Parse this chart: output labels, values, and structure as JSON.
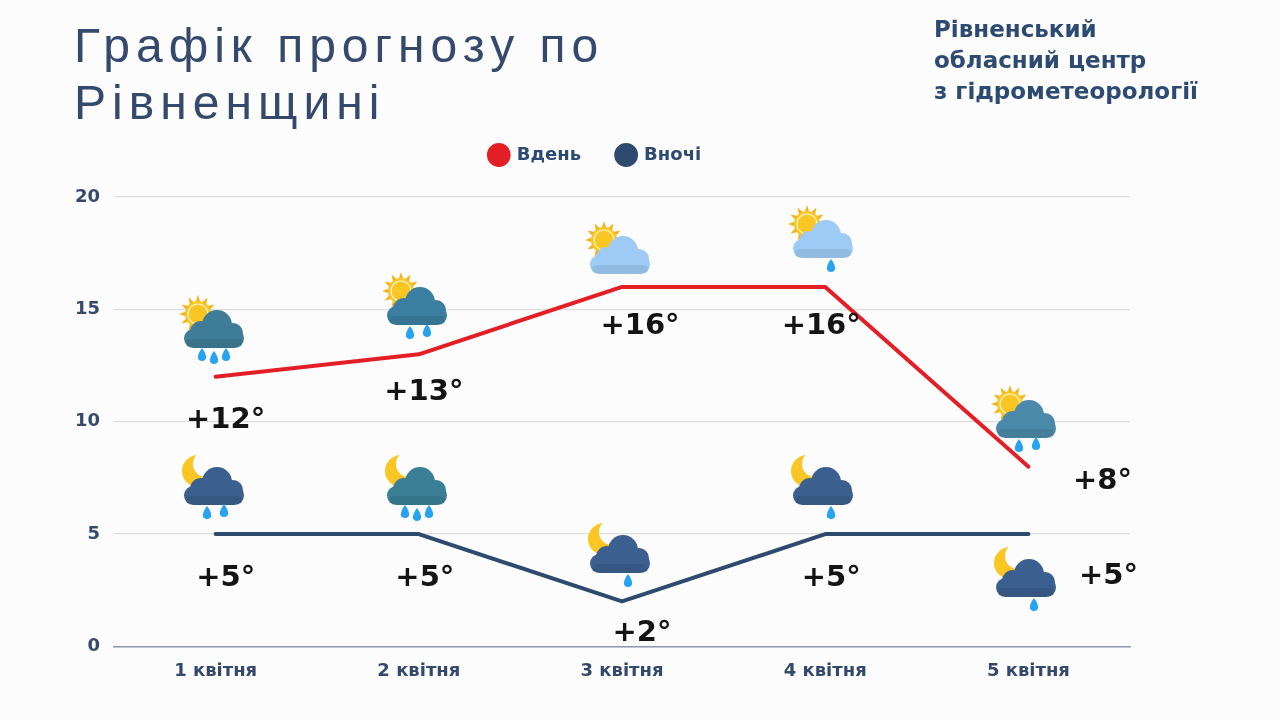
{
  "chart_data": {
    "type": "line",
    "title": "Графік прогнозу по Рівненщині",
    "annotations": [
      "Рівненський\nобласний центр\nз гідрометеорології"
    ],
    "categories": [
      "1 квітня",
      "2 квітня",
      "3 квітня",
      "4 квітня",
      "5 квітня"
    ],
    "series": [
      {
        "name": "Вдень",
        "color": "#e31e24",
        "values": [
          12,
          13,
          16,
          16,
          8
        ],
        "value_labels": [
          "+12°",
          "+13°",
          "+16°",
          "+16°",
          "+8°"
        ]
      },
      {
        "name": "Вночі",
        "color": "#2e4a6f",
        "values": [
          5,
          5,
          2,
          5,
          5
        ],
        "value_labels": [
          "+5°",
          "+5°",
          "+2°",
          "+5°",
          "+5°"
        ]
      }
    ],
    "ylim": [
      0,
      20
    ],
    "yticks": [
      0,
      5,
      10,
      15,
      20
    ],
    "grid": "y",
    "legend": "top",
    "marker": "none",
    "line_style": "solid"
  }
}
